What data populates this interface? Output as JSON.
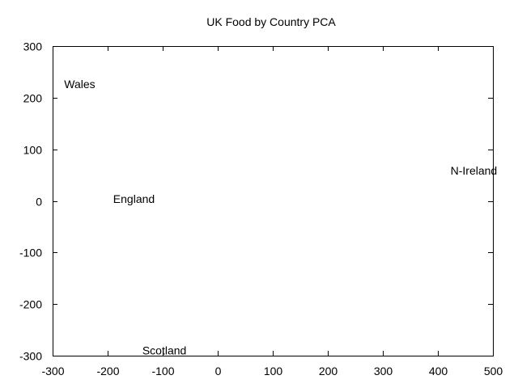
{
  "chart_data": {
    "type": "scatter",
    "title": "UK Food by Country PCA",
    "xlabel": "",
    "ylabel": "",
    "xlim": [
      -300,
      500
    ],
    "ylim": [
      -300,
      300
    ],
    "xticks": [
      "-300",
      "-200",
      "-100",
      "0",
      "100",
      "200",
      "300",
      "400",
      "500"
    ],
    "yticks": [
      "300",
      "200",
      "100",
      "0",
      "-100",
      "-200",
      "-300"
    ],
    "grid": false,
    "legend": "none",
    "points": [
      {
        "label": "Wales",
        "x": -279,
        "y": 226
      },
      {
        "label": "England",
        "x": -190,
        "y": 4
      },
      {
        "label": "N-Ireland",
        "x": 423,
        "y": 59
      },
      {
        "label": "Scotland",
        "x": -137,
        "y": -290
      }
    ]
  }
}
